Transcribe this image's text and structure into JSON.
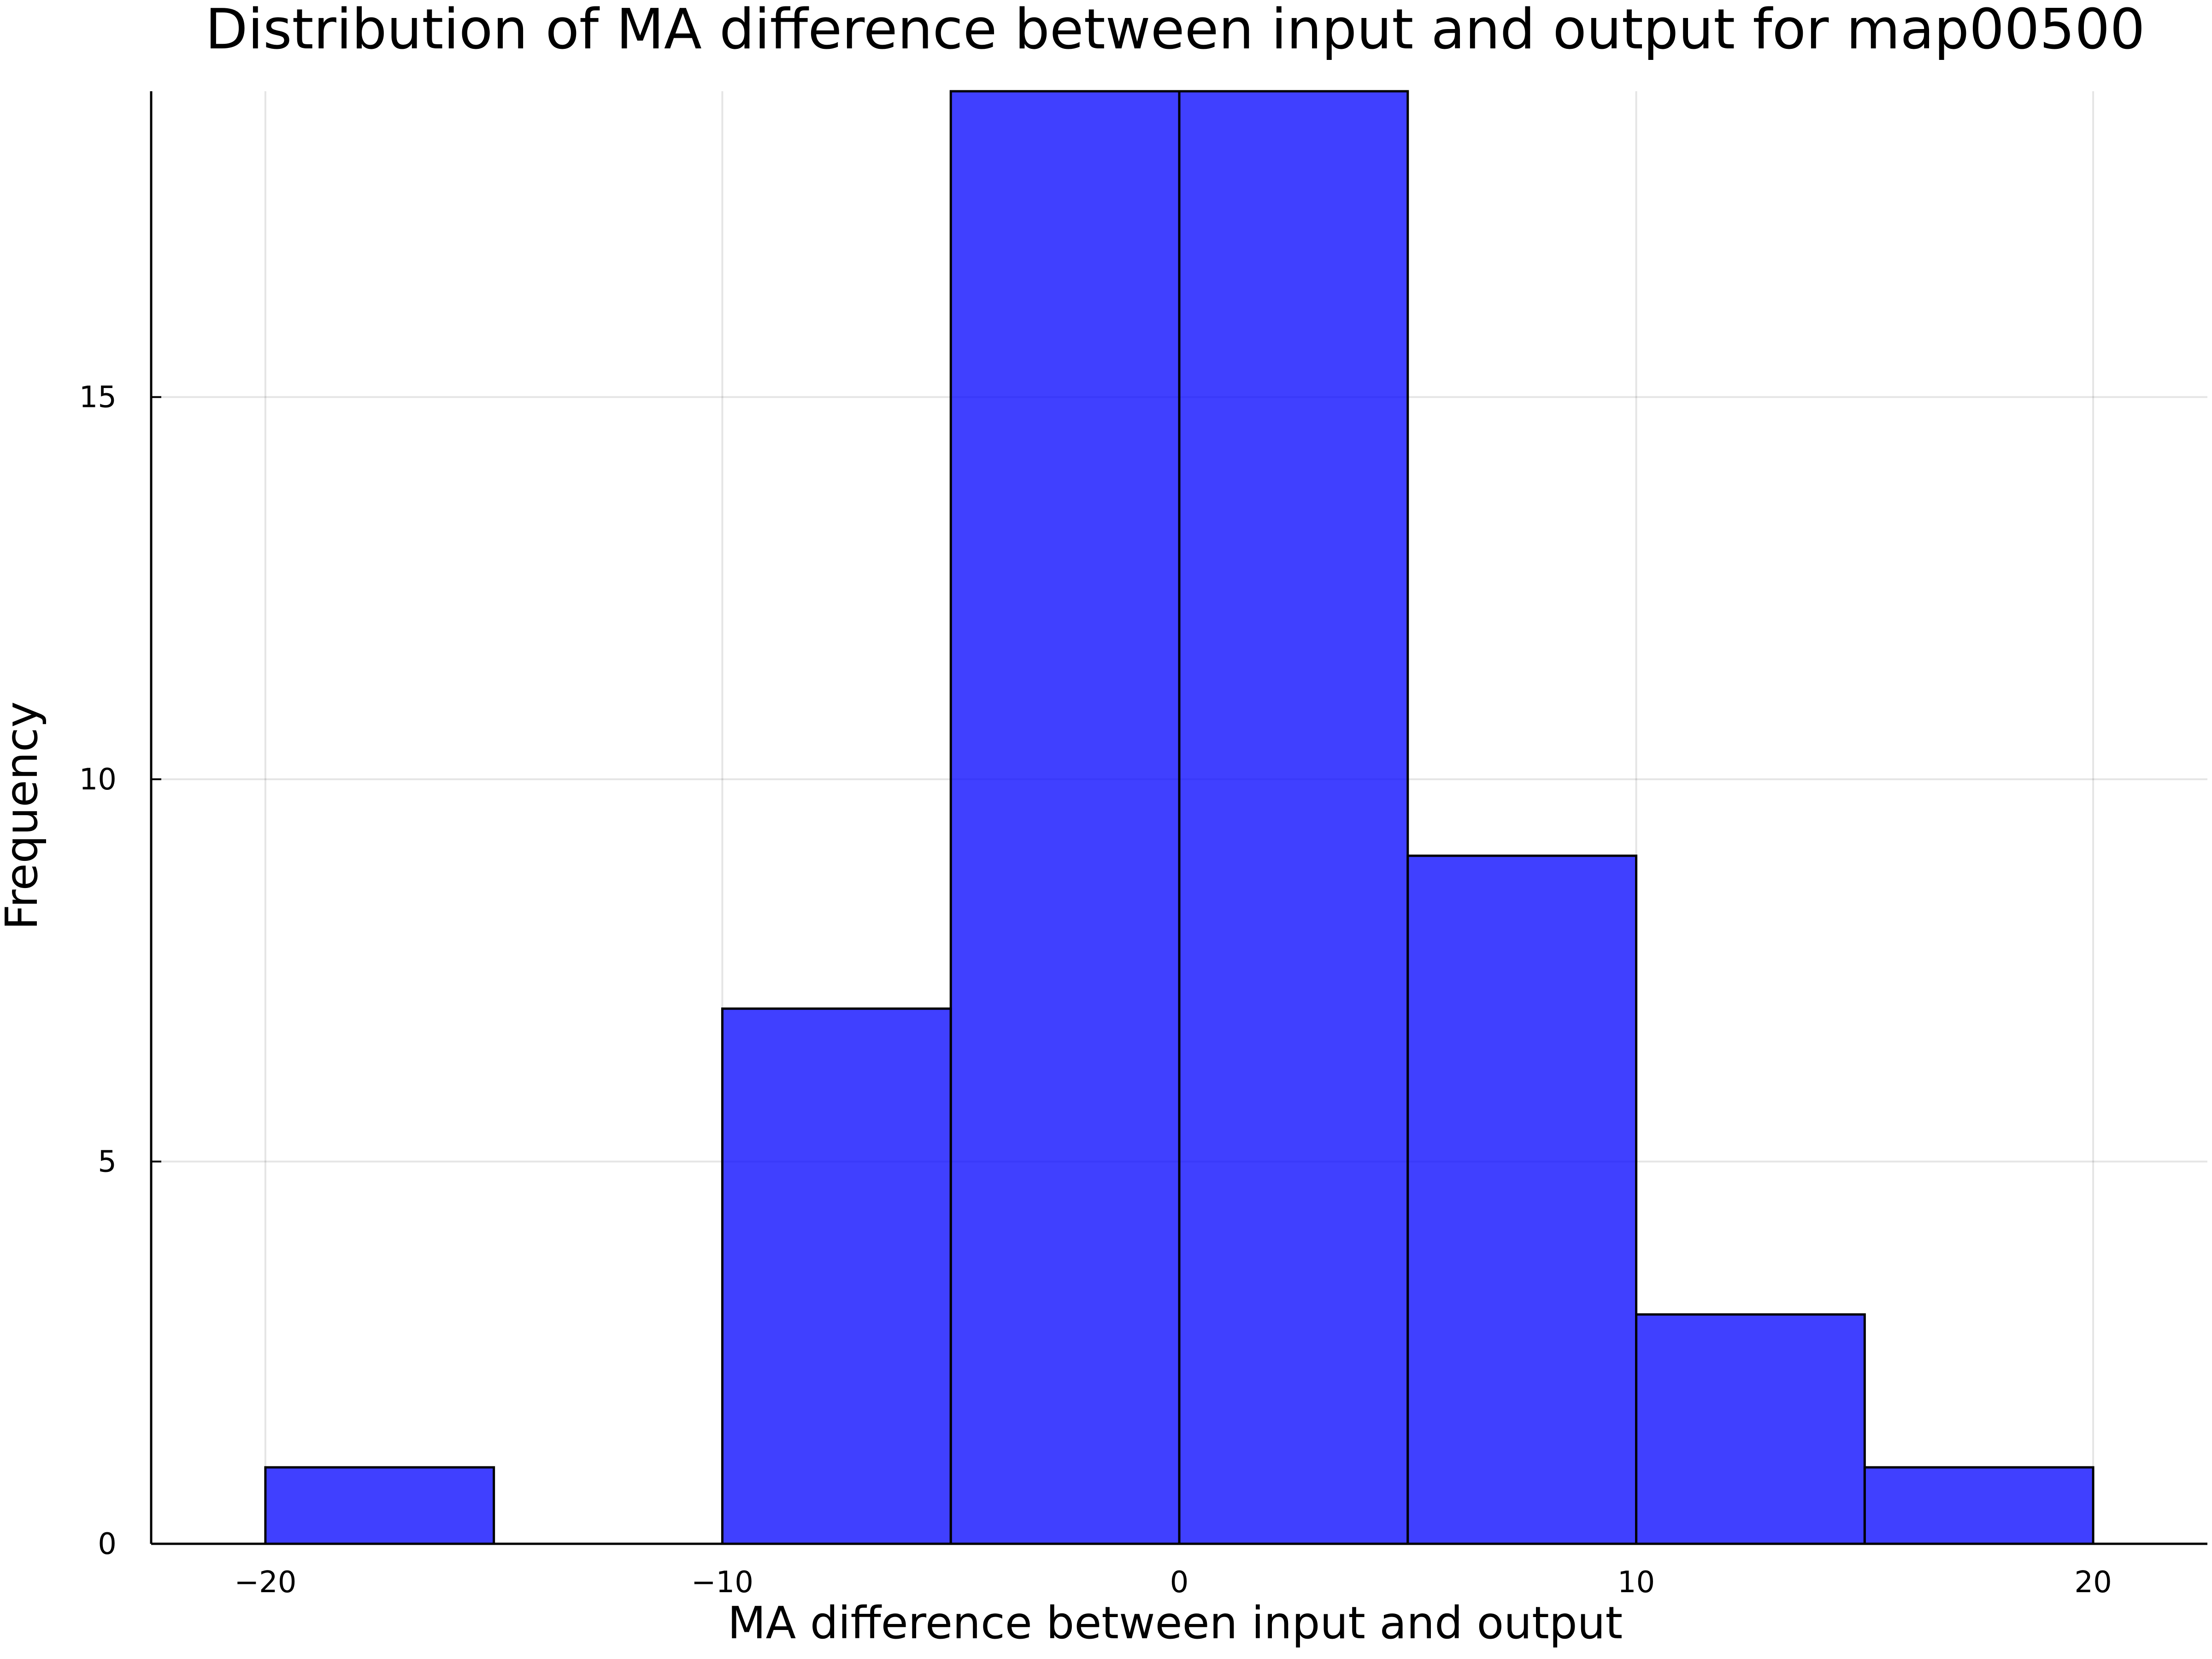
{
  "chart_data": {
    "type": "bar",
    "title": "Distribution of MA difference between input and output for map00500",
    "xlabel": "MA difference between input and output",
    "ylabel": "Frequency",
    "bins": [
      {
        "x0": -20,
        "x1": -15,
        "count": 1
      },
      {
        "x0": -15,
        "x1": -10,
        "count": 0
      },
      {
        "x0": -10,
        "x1": -5,
        "count": 7
      },
      {
        "x0": -5,
        "x1": 0,
        "count": 19
      },
      {
        "x0": 0,
        "x1": 5,
        "count": 19
      },
      {
        "x0": 5,
        "x1": 10,
        "count": 9
      },
      {
        "x0": 10,
        "x1": 15,
        "count": 3
      },
      {
        "x0": 15,
        "x1": 20,
        "count": 1
      }
    ],
    "xlim": [
      -22.5,
      22.5
    ],
    "ylim": [
      0,
      19
    ],
    "xticks": [
      -20,
      -10,
      0,
      10,
      20
    ],
    "xtick_labels": [
      "−20",
      "−10",
      "0",
      "10",
      "20"
    ],
    "yticks": [
      0,
      5,
      10,
      15
    ],
    "ytick_labels": [
      "0",
      "5",
      "10",
      "15"
    ],
    "bar_color": "#0000ff",
    "bar_opacity": 0.75,
    "grid": true,
    "legend": false
  }
}
